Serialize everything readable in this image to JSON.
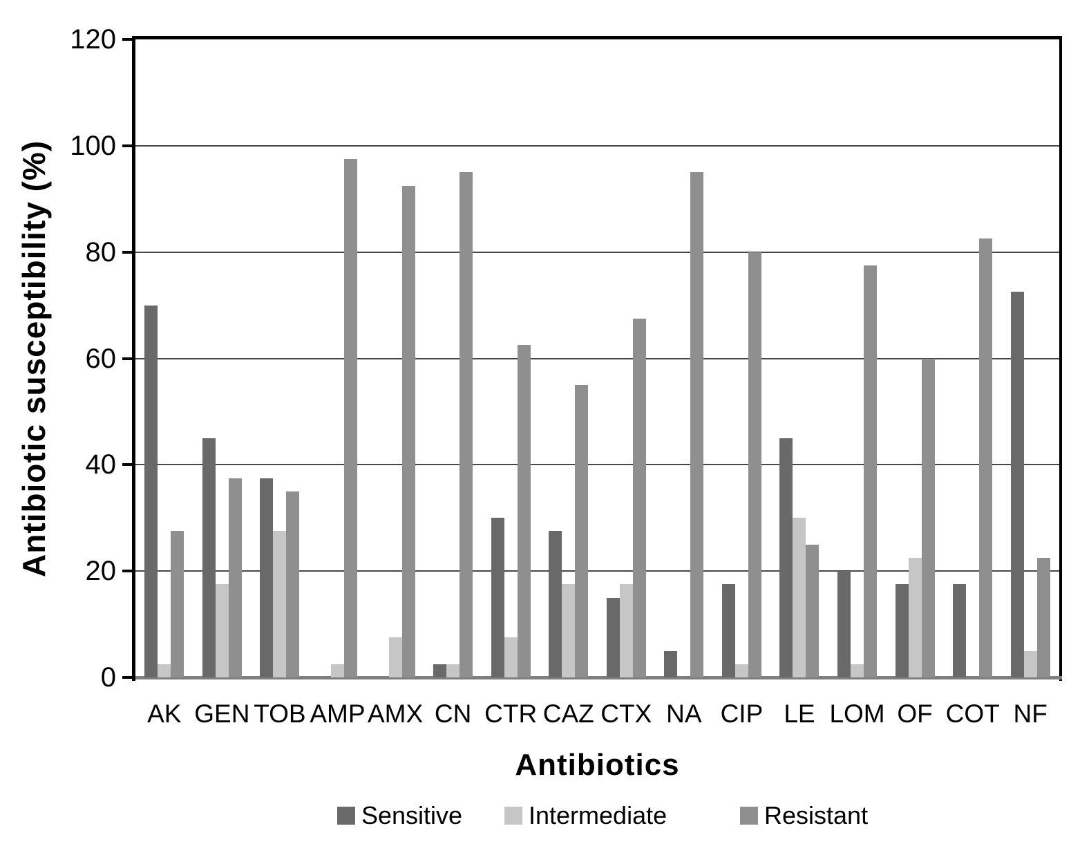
{
  "chart_data": {
    "type": "bar",
    "title": "",
    "xlabel": "Antibiotics",
    "ylabel": "Antibiotic susceptibility (%)",
    "ylim": [
      0,
      120
    ],
    "y_ticks": [
      0,
      20,
      40,
      60,
      80,
      100,
      120
    ],
    "grid": true,
    "legend_position": "bottom",
    "categories": [
      "AK",
      "GEN",
      "TOB",
      "AMP",
      "AMX",
      "CN",
      "CTR",
      "CAZ",
      "CTX",
      "NA",
      "CIP",
      "LE",
      "LOM",
      "OF",
      "COT",
      "NF"
    ],
    "series": [
      {
        "name": "Sensitive",
        "color": "#696969",
        "values": [
          70,
          45,
          37.5,
          0,
          0,
          2.5,
          30,
          27.5,
          15,
          5,
          17.5,
          45,
          20,
          17.5,
          17.5,
          72.5
        ]
      },
      {
        "name": "Intermediate",
        "color": "#c6c6c6",
        "values": [
          2.5,
          17.5,
          27.5,
          2.5,
          7.5,
          2.5,
          7.5,
          17.5,
          17.5,
          0,
          2.5,
          30,
          2.5,
          22.5,
          0,
          5
        ]
      },
      {
        "name": "Resistant",
        "color": "#8f8f8f",
        "values": [
          27.5,
          37.5,
          35,
          97.5,
          92.5,
          95,
          62.5,
          55,
          67.5,
          95,
          80,
          25,
          77.5,
          60,
          82.5,
          22.5
        ]
      }
    ],
    "colors": {
      "gridline": "#474747",
      "plot_border": "#000000",
      "baseline": "#7f7f7f",
      "text": "#000000"
    }
  }
}
